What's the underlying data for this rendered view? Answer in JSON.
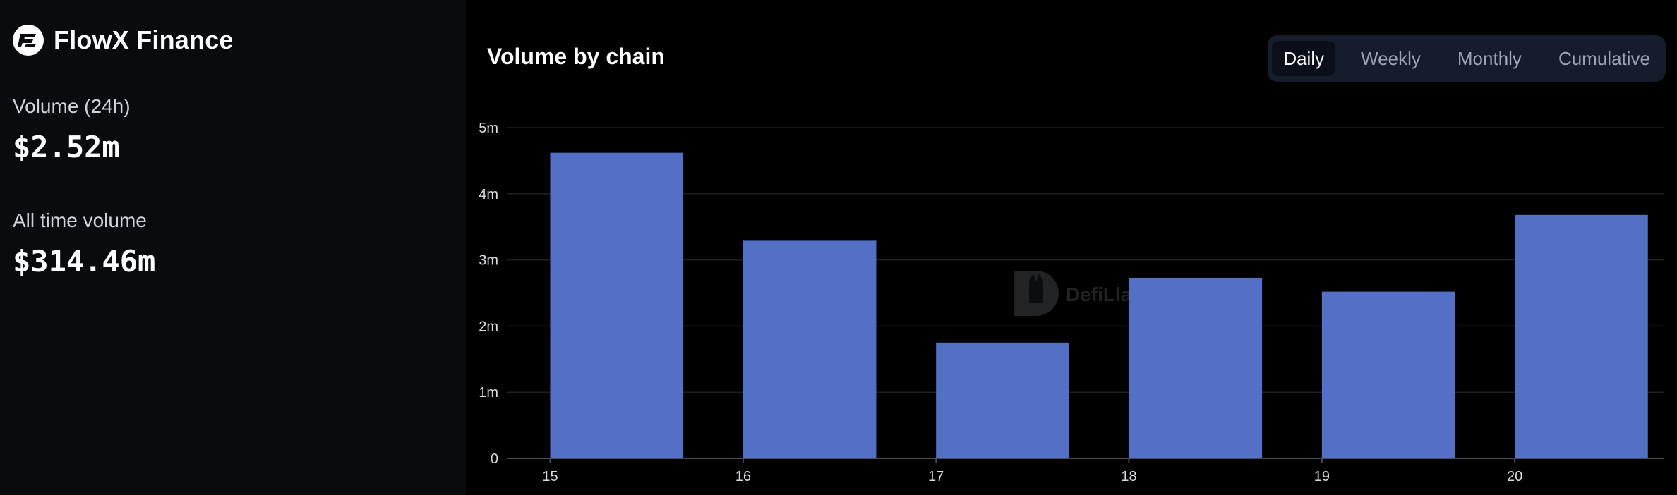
{
  "app": {
    "name": "FlowX Finance",
    "logo_icon": "flowx-logo-icon"
  },
  "stats": [
    {
      "label": "Volume (24h)",
      "value": "$2.52m"
    },
    {
      "label": "All time volume",
      "value": "$314.46m"
    }
  ],
  "chart_header": {
    "title": "Volume by chain"
  },
  "tabs": [
    {
      "label": "Daily",
      "active": true
    },
    {
      "label": "Weekly",
      "active": false
    },
    {
      "label": "Monthly",
      "active": false
    },
    {
      "label": "Cumulative",
      "active": false
    }
  ],
  "watermark": {
    "text": "DefiLlama",
    "icon": "defillama-llama-icon"
  },
  "colors": {
    "bar": "#5470c6",
    "grid": "#1d1f24",
    "axis": "#4a4d55",
    "background": "#000000",
    "side_background": "#090c0e"
  },
  "chart_data": {
    "type": "bar",
    "categories": [
      "15",
      "16",
      "17",
      "18",
      "19",
      "20"
    ],
    "values": [
      4620000,
      3290000,
      1750000,
      2730000,
      2520000,
      3680000
    ],
    "title": "Volume by chain",
    "xlabel": "",
    "ylabel": "",
    "ylim": [
      0,
      5000000
    ],
    "y_ticks": [
      {
        "value": 0,
        "label": "0"
      },
      {
        "value": 1000000,
        "label": "1m"
      },
      {
        "value": 2000000,
        "label": "2m"
      },
      {
        "value": 3000000,
        "label": "3m"
      },
      {
        "value": 4000000,
        "label": "4m"
      },
      {
        "value": 5000000,
        "label": "5m"
      }
    ],
    "grid": true,
    "legend": "none"
  }
}
